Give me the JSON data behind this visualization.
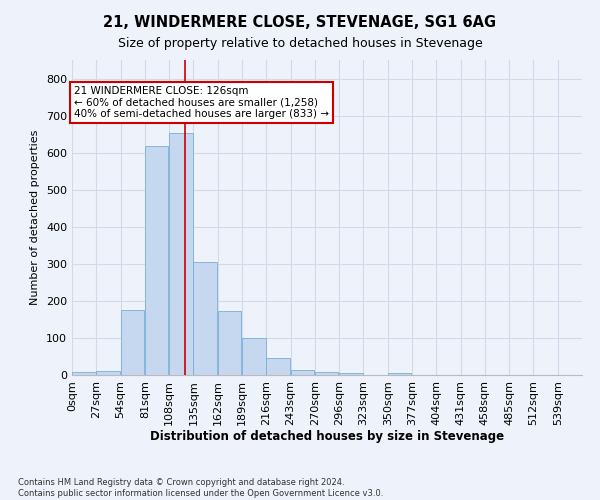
{
  "title": "21, WINDERMERE CLOSE, STEVENAGE, SG1 6AG",
  "subtitle": "Size of property relative to detached houses in Stevenage",
  "xlabel": "Distribution of detached houses by size in Stevenage",
  "ylabel": "Number of detached properties",
  "bin_labels": [
    "0sqm",
    "27sqm",
    "54sqm",
    "81sqm",
    "108sqm",
    "135sqm",
    "162sqm",
    "189sqm",
    "216sqm",
    "243sqm",
    "270sqm",
    "296sqm",
    "323sqm",
    "350sqm",
    "377sqm",
    "404sqm",
    "431sqm",
    "458sqm",
    "485sqm",
    "512sqm",
    "539sqm"
  ],
  "bin_values": [
    7,
    12,
    175,
    617,
    652,
    305,
    172,
    100,
    45,
    13,
    8,
    5,
    0,
    5,
    0,
    0,
    0,
    0,
    0,
    0,
    0
  ],
  "bar_color": "#c5d8f0",
  "bar_edge_color": "#7aafd4",
  "property_line_x": 126,
  "bin_width": 27,
  "annotation_text": "21 WINDERMERE CLOSE: 126sqm\n← 60% of detached houses are smaller (1,258)\n40% of semi-detached houses are larger (833) →",
  "annotation_box_color": "#ffffff",
  "annotation_box_edge": "#cc0000",
  "vline_color": "#cc0000",
  "grid_color": "#d0daea",
  "background_color": "#eef2fa",
  "footnote": "Contains HM Land Registry data © Crown copyright and database right 2024.\nContains public sector information licensed under the Open Government Licence v3.0.",
  "ylim": [
    0,
    850
  ],
  "yticks": [
    0,
    100,
    200,
    300,
    400,
    500,
    600,
    700,
    800
  ]
}
